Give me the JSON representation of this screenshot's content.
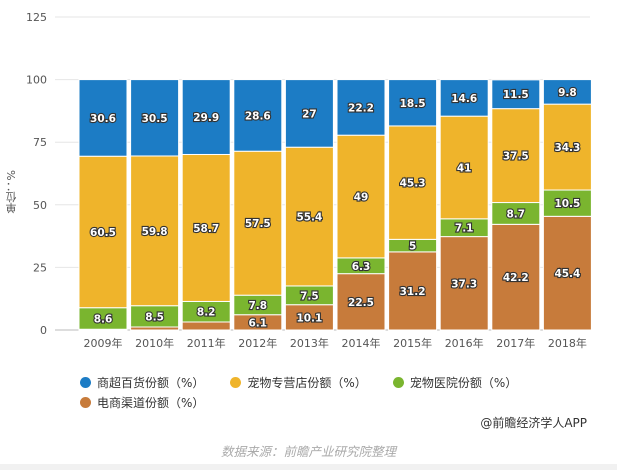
{
  "chart_data": {
    "type": "bar",
    "stacked": true,
    "categories": [
      "2009年",
      "2010年",
      "2011年",
      "2012年",
      "2013年",
      "2014年",
      "2015年",
      "2016年",
      "2017年",
      "2018年"
    ],
    "series": [
      {
        "name": "电商渠道份额（%）",
        "color": "#c77b3b",
        "values": [
          0.3,
          1.2,
          3.2,
          6.1,
          10.1,
          22.5,
          31.2,
          37.3,
          42.2,
          45.4
        ],
        "labeled": [
          false,
          false,
          false,
          true,
          true,
          true,
          true,
          true,
          true,
          true
        ]
      },
      {
        "name": "宠物医院份额（%）",
        "color": "#7ab52f",
        "values": [
          8.6,
          8.5,
          8.2,
          7.8,
          7.5,
          6.3,
          5,
          7.1,
          8.7,
          10.5
        ],
        "labeled": [
          true,
          true,
          true,
          true,
          true,
          true,
          true,
          true,
          true,
          true
        ]
      },
      {
        "name": "宠物专营店份额（%）",
        "color": "#efb42b",
        "values": [
          60.5,
          59.8,
          58.7,
          57.5,
          55.4,
          49,
          45.3,
          41,
          37.5,
          34.3
        ],
        "labeled": [
          true,
          true,
          true,
          true,
          true,
          true,
          true,
          true,
          true,
          true
        ]
      },
      {
        "name": "商超百货份额（%）",
        "color": "#1c7cc5",
        "values": [
          30.6,
          30.5,
          29.9,
          28.6,
          27,
          22.2,
          18.5,
          14.6,
          11.5,
          9.8
        ],
        "labeled": [
          true,
          true,
          true,
          true,
          true,
          true,
          true,
          true,
          true,
          true
        ]
      }
    ],
    "legend_order": [
      3,
      2,
      1,
      0
    ],
    "ylabel": "单位：%",
    "ylim": [
      0,
      125
    ],
    "yticks": [
      0,
      25,
      50,
      75,
      100,
      125
    ],
    "grid": true,
    "legend_position": "bottom"
  },
  "credit": "@前瞻经济学人APP",
  "source": "数据来源：前瞻产业研究院整理"
}
